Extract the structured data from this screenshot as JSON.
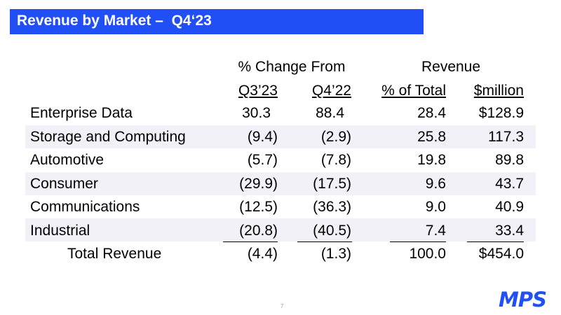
{
  "title": "Revenue by Market –  Q4‘23",
  "header": {
    "group_change": "% Change From",
    "group_revenue": "Revenue",
    "col_q3": "Q3’23",
    "col_q4": "Q4’22",
    "col_pct": "% of Total",
    "col_mil": "$million"
  },
  "rows": [
    {
      "name": "Enterprise Data",
      "q3": "30.3",
      "q4": "88.4",
      "pct": "28.4",
      "mil": "$128.9"
    },
    {
      "name": "Storage and Computing",
      "q3": "(9.4)",
      "q4": "(2.9)",
      "pct": "25.8",
      "mil": "117.3"
    },
    {
      "name": "Automotive",
      "q3": "(5.7)",
      "q4": "(7.8)",
      "pct": "19.8",
      "mil": "89.8"
    },
    {
      "name": "Consumer",
      "q3": "(29.9)",
      "q4": "(17.5)",
      "pct": "9.6",
      "mil": "43.7"
    },
    {
      "name": "Communications",
      "q3": "(12.5)",
      "q4": "(36.3)",
      "pct": "9.0",
      "mil": "40.9"
    },
    {
      "name": "Industrial",
      "q3": "(20.8)",
      "q4": "(40.5)",
      "pct": "7.4",
      "mil": "33.4"
    }
  ],
  "total": {
    "name": "Total Revenue",
    "q3": "(4.4)",
    "q4": "(1.3)",
    "pct": "100.0",
    "mil": "$454.0"
  },
  "page_number": "7",
  "logo": {
    "text": "MPS",
    "color": "#1f4ff5"
  },
  "colors": {
    "title_bar": "#1f4ff5",
    "stripe": "#f1f1f7"
  }
}
